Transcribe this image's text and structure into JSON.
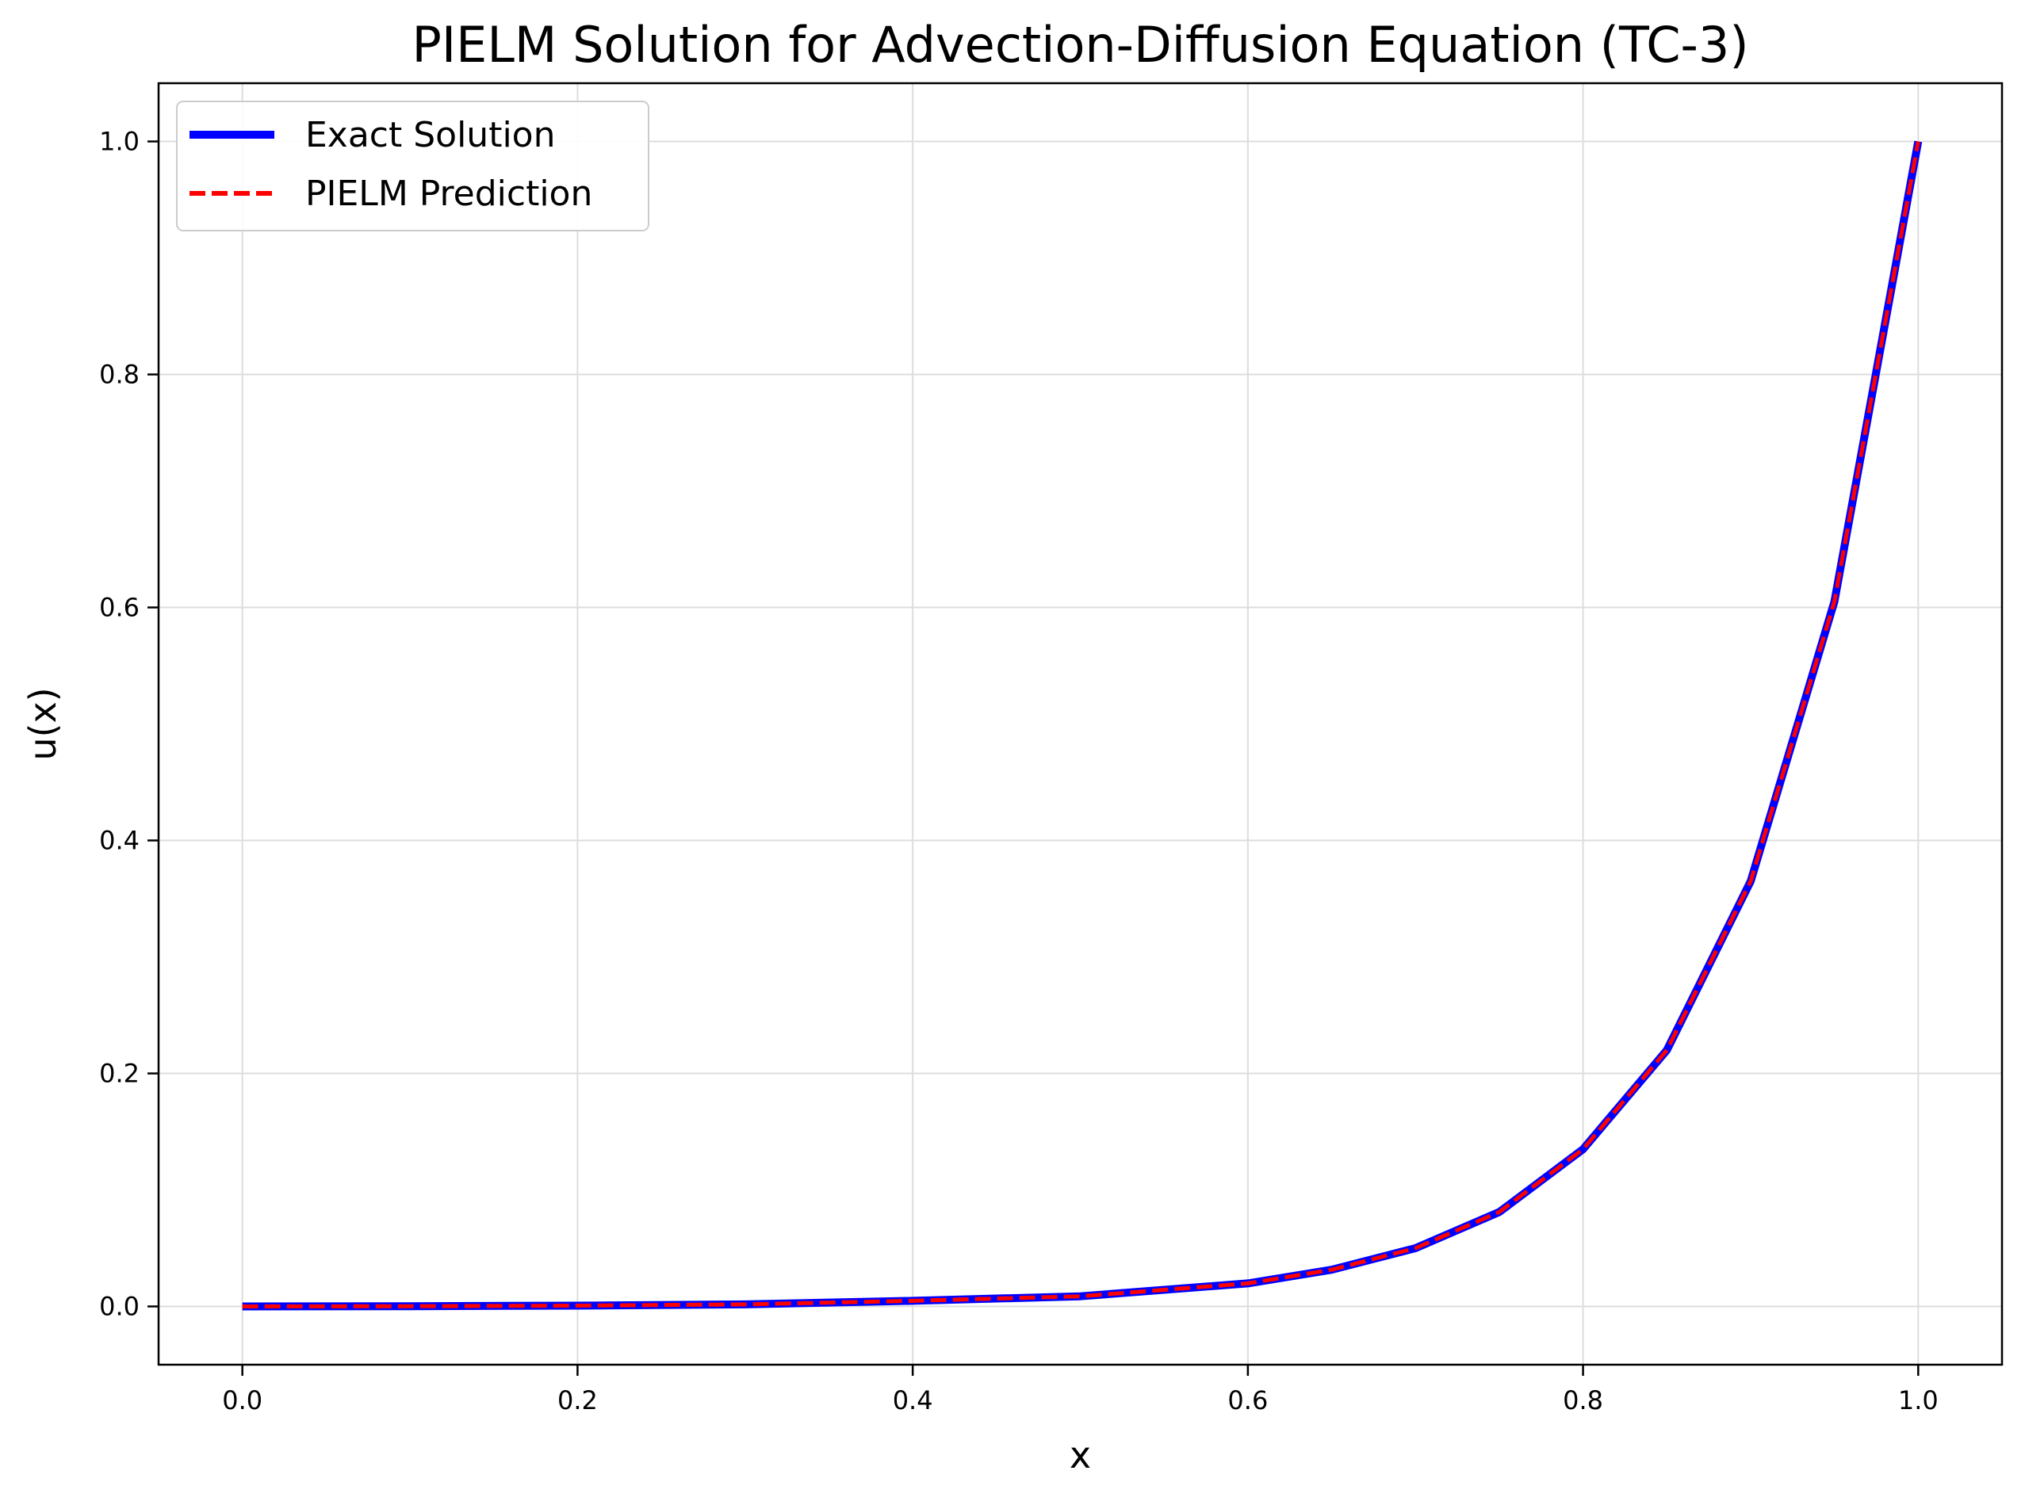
{
  "chart_data": {
    "type": "line",
    "title": "PIELM Solution for Advection-Diffusion Equation (TC-3)",
    "xlabel": "x",
    "ylabel": "u(x)",
    "xlim": [
      -0.05,
      1.05
    ],
    "ylim": [
      -0.05,
      1.05
    ],
    "xticks": [
      0.0,
      0.2,
      0.4,
      0.6,
      0.8,
      1.0
    ],
    "xtick_labels": [
      "0.0",
      "0.2",
      "0.4",
      "0.6",
      "0.8",
      "1.0"
    ],
    "yticks": [
      0.0,
      0.2,
      0.4,
      0.6,
      0.8,
      1.0
    ],
    "ytick_labels": [
      "0.0",
      "0.2",
      "0.4",
      "0.6",
      "0.8",
      "1.0"
    ],
    "grid": true,
    "legend_position": "upper-left",
    "x": [
      0.0,
      0.1,
      0.2,
      0.3,
      0.4,
      0.5,
      0.6,
      0.65,
      0.7,
      0.75,
      0.8,
      0.85,
      0.9,
      0.95,
      1.0
    ],
    "series": [
      {
        "name": "Exact Solution",
        "color": "#0000ff",
        "style": "solid",
        "values": [
          0.0,
          0.0002,
          0.0007,
          0.0018,
          0.0048,
          0.0087,
          0.0198,
          0.0315,
          0.05,
          0.081,
          0.135,
          0.22,
          0.365,
          0.605,
          1.0
        ]
      },
      {
        "name": "PIELM Prediction",
        "color": "#ff0000",
        "style": "dashed",
        "values": [
          0.0,
          0.0002,
          0.0007,
          0.0018,
          0.0048,
          0.0087,
          0.0198,
          0.0315,
          0.05,
          0.081,
          0.135,
          0.22,
          0.365,
          0.605,
          1.0
        ]
      }
    ]
  }
}
